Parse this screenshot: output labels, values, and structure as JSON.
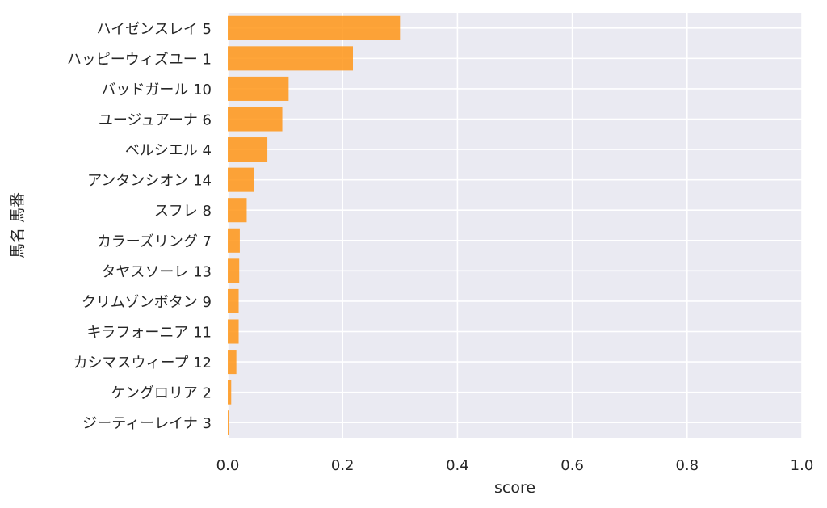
{
  "chart_data": {
    "type": "bar",
    "orientation": "horizontal",
    "categories": [
      "ハイゼンスレイ 5",
      "ハッピーウィズユー 1",
      "バッドガール 10",
      "ユージュアーナ 6",
      "ベルシエル 4",
      "アンタンシオン 14",
      "スフレ 8",
      "カラーズリング 7",
      "タヤスソーレ 13",
      "クリムゾンボタン 9",
      "キラフォーニア 11",
      "カシマスウィープ 12",
      "ケングロリア 2",
      "ジーティーレイナ 3"
    ],
    "values": [
      0.3,
      0.218,
      0.106,
      0.095,
      0.069,
      0.045,
      0.033,
      0.021,
      0.02,
      0.019,
      0.019,
      0.015,
      0.006,
      0.002
    ],
    "xlabel": "score",
    "ylabel": "馬名 馬番",
    "xlim": [
      0,
      1.0
    ],
    "xticks": [
      "0.0",
      "0.2",
      "0.4",
      "0.6",
      "0.8",
      "1.0"
    ],
    "grid": true,
    "bar_color": "#ff9516",
    "background_color": "#eaeaf2",
    "grid_color": "#ffffff"
  }
}
